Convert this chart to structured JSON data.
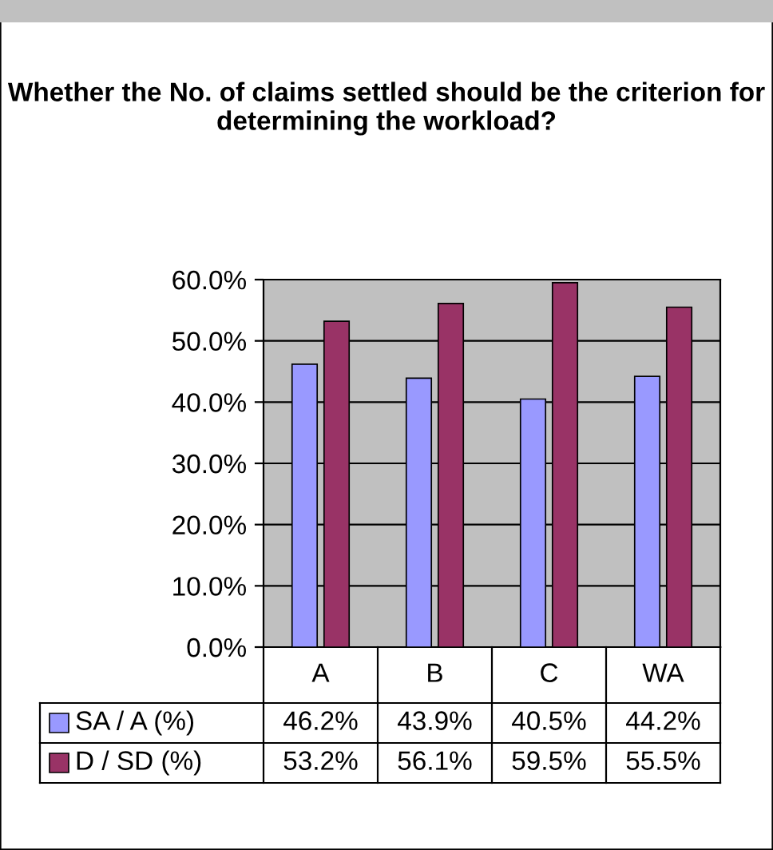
{
  "chart_data": {
    "type": "bar",
    "title": "Whether the No. of claims settled should be the criterion for determining the workload?",
    "categories": [
      "A",
      "B",
      "C",
      "WA"
    ],
    "series": [
      {
        "name": "SA / A (%)",
        "color": "#9999ff",
        "values": [
          46.2,
          43.9,
          40.5,
          44.2
        ],
        "value_labels": [
          "46.2%",
          "43.9%",
          "40.5%",
          "44.2%"
        ]
      },
      {
        "name": "D / SD (%)",
        "color": "#993366",
        "values": [
          53.2,
          56.1,
          59.5,
          55.5
        ],
        "value_labels": [
          "53.2%",
          "56.1%",
          "59.5%",
          "55.5%"
        ]
      }
    ],
    "ylim": [
      0,
      60
    ],
    "yticks": [
      {
        "value": 0,
        "label": "0.0%"
      },
      {
        "value": 10,
        "label": "10.0%"
      },
      {
        "value": 20,
        "label": "20.0%"
      },
      {
        "value": 30,
        "label": "30.0%"
      },
      {
        "value": 40,
        "label": "40.0%"
      },
      {
        "value": 50,
        "label": "50.0%"
      },
      {
        "value": 60,
        "label": "60.0%"
      }
    ],
    "grid": "y",
    "legend": "bottom"
  }
}
